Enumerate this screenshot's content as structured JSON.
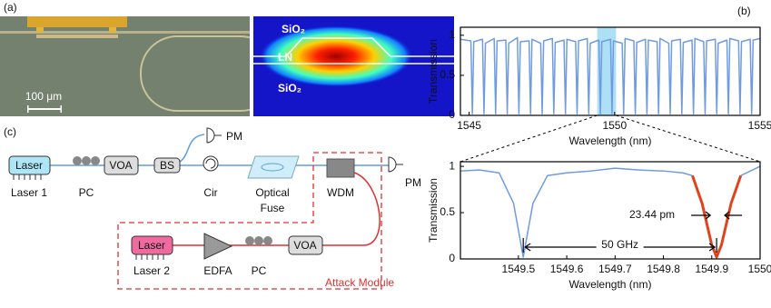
{
  "panels": {
    "a": "(a)",
    "b": "(b)",
    "c": "(c)"
  },
  "photo": {
    "scale_bar": "100 μm",
    "layers": [
      "SiO₂",
      "LN",
      "SiO₂"
    ]
  },
  "diagram": {
    "laser1": {
      "inner": "Laser",
      "label": "Laser 1"
    },
    "pc1": {
      "label": "PC"
    },
    "voa1": {
      "inner": "VOA"
    },
    "bs": {
      "inner": "BS"
    },
    "cir": {
      "label": "Cir"
    },
    "fuse": {
      "label": [
        "Optical",
        "Fuse"
      ]
    },
    "wdm": {
      "label": "WDM"
    },
    "pm1": {
      "label": "PM"
    },
    "pm2": {
      "label": "PM"
    },
    "laser2": {
      "inner": "Laser",
      "label": "Laser 2"
    },
    "edfa": {
      "label": "EDFA"
    },
    "pc2": {
      "label": "PC"
    },
    "voa2": {
      "inner": "VOA"
    },
    "module": {
      "label": "Attack Module"
    }
  },
  "chart_data": [
    {
      "type": "line",
      "x_label": "Wavelength (nm)",
      "y_label": "Transmission",
      "color": "#6f9be3",
      "x": [
        1544.7,
        1545.06,
        1545.11,
        1545.16,
        1545.46,
        1545.51,
        1545.56,
        1545.86,
        1545.91,
        1545.96,
        1546.26,
        1546.31,
        1546.36,
        1546.66,
        1546.71,
        1546.76,
        1547.06,
        1547.11,
        1547.16,
        1547.46,
        1547.51,
        1547.56,
        1547.86,
        1547.91,
        1547.96,
        1548.26,
        1548.31,
        1548.36,
        1548.66,
        1548.71,
        1548.76,
        1549.06,
        1549.11,
        1549.16,
        1549.46,
        1549.51,
        1549.56,
        1549.86,
        1549.91,
        1549.96,
        1550.26,
        1550.31,
        1550.36,
        1550.66,
        1550.71,
        1550.76,
        1551.06,
        1551.11,
        1551.16,
        1551.46,
        1551.51,
        1551.56,
        1551.86,
        1551.91,
        1551.96,
        1552.26,
        1552.31,
        1552.36,
        1552.66,
        1552.71,
        1552.76,
        1553.06,
        1553.11,
        1553.16,
        1553.46,
        1553.51,
        1553.56,
        1553.86,
        1553.91,
        1553.96,
        1554.26,
        1554.31,
        1554.36,
        1554.66,
        1554.71,
        1554.76,
        1555
      ],
      "values": [
        0.95,
        0.93,
        0.02,
        0.92,
        0.95,
        0.02,
        0.9,
        0.96,
        0.02,
        0.93,
        0.94,
        0.02,
        0.9,
        0.97,
        0.02,
        0.92,
        0.93,
        0.02,
        0.95,
        0.9,
        0.02,
        0.93,
        0.96,
        0.02,
        0.91,
        0.94,
        0.02,
        0.95,
        0.92,
        0.02,
        0.93,
        0.96,
        0.02,
        0.9,
        0.94,
        0.02,
        0.92,
        0.95,
        0.02,
        0.93,
        0.9,
        0.02,
        0.96,
        0.93,
        0.02,
        0.91,
        0.95,
        0.02,
        0.94,
        0.92,
        0.02,
        0.96,
        0.9,
        0.02,
        0.93,
        0.95,
        0.02,
        0.91,
        0.94,
        0.02,
        0.96,
        0.92,
        0.02,
        0.93,
        0.95,
        0.02,
        0.9,
        0.94,
        0.02,
        0.96,
        0.93,
        0.02,
        0.92,
        0.95,
        0.02,
        0.94,
        0.96
      ],
      "highlight": {
        "range": [
          1549.4,
          1550.05
        ],
        "color": "#aee0f5"
      },
      "xlim": [
        1544.7,
        1555
      ],
      "ylim": [
        0,
        1.1
      ],
      "xticks": [
        1545,
        1550,
        1555
      ],
      "yticks": [
        0,
        0.5,
        1
      ]
    },
    {
      "type": "line",
      "x_label": "Wavelength (nm)",
      "y_label": "Transmission",
      "series": [
        {
          "color": "#6f9be3",
          "x": [
            1549.38,
            1549.42,
            1549.46,
            1549.49,
            1549.51,
            1549.53,
            1549.56,
            1549.6,
            1549.65,
            1549.7,
            1549.75,
            1549.8,
            1549.84,
            1549.86
          ],
          "values": [
            0.95,
            0.96,
            0.93,
            0.6,
            0.02,
            0.6,
            0.9,
            0.93,
            0.95,
            0.98,
            0.96,
            0.95,
            0.93,
            0.9
          ]
        },
        {
          "color": "#e0441c",
          "x": [
            1549.86,
            1549.88,
            1549.9,
            1549.91,
            1549.92,
            1549.94,
            1549.96
          ],
          "values": [
            0.9,
            0.6,
            0.15,
            0.02,
            0.15,
            0.6,
            0.9
          ]
        },
        {
          "color": "#6f9be3",
          "x": [
            1549.96,
            1549.98,
            1550
          ],
          "values": [
            0.9,
            0.95,
            1
          ]
        }
      ],
      "annotations": [
        "23.44 pm",
        "50 GHz"
      ],
      "xlim": [
        1549.38,
        1550
      ],
      "ylim": [
        0,
        1.05
      ],
      "xticks": [
        1549.5,
        1549.6,
        1549.7,
        1549.8,
        1549.9,
        1550
      ],
      "yticks": [
        0,
        0.5,
        1
      ]
    }
  ]
}
